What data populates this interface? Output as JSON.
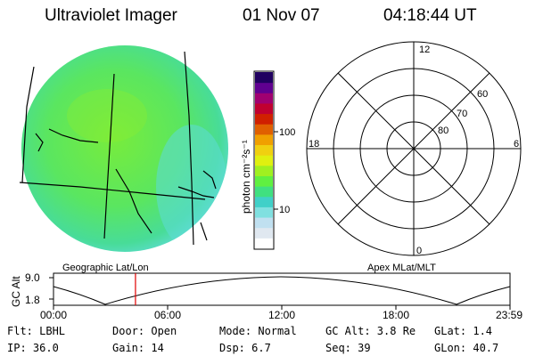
{
  "header": {
    "title": "Ultraviolet Imager",
    "date": "01 Nov 07",
    "time": "04:18:44 UT"
  },
  "colorbar": {
    "label": "photon cm⁻²s⁻¹",
    "ticks": [
      "100",
      "10"
    ],
    "colors": [
      "#ffffff",
      "#e0e8f0",
      "#c0e0f0",
      "#80e0e0",
      "#40d0c8",
      "#40e080",
      "#60f040",
      "#a0f020",
      "#e0f010",
      "#f0d010",
      "#f0a000",
      "#e06000",
      "#d02000",
      "#c00030",
      "#a00070",
      "#600090",
      "#200060"
    ]
  },
  "polar": {
    "lat_labels": [
      "80",
      "70",
      "60"
    ],
    "mlt_labels": {
      "top": "12",
      "left": "18",
      "right": "6",
      "bottom": "0"
    }
  },
  "captions": {
    "left": "Geographic Lat/Lon",
    "right": "Apex MLat/MLT"
  },
  "altitude_plot": {
    "ylabel": "GC Alt",
    "yticks": [
      "9.0",
      "1.8"
    ],
    "xticks": [
      "00:00",
      "06:00",
      "12:00",
      "18:00",
      "23:59"
    ],
    "current_marker_hours": 4.31
  },
  "info": {
    "flt": "Flt: LBHL",
    "ip": "IP: 36.0",
    "door": "Door: Open",
    "gain": "Gain: 14",
    "mode": "Mode: Normal",
    "dsp": "Dsp:    6.7",
    "gc_alt": "GC Alt: 3.8 Re",
    "seq": "Seq: 39",
    "glat": "GLat:     1.4",
    "glon": "GLon:  40.7"
  }
}
